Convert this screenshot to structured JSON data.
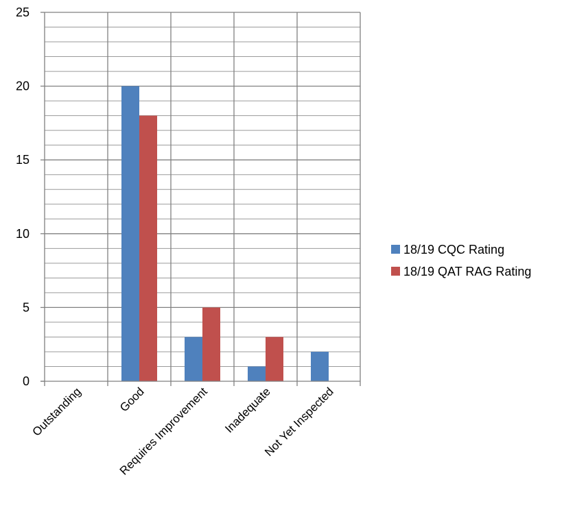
{
  "chart_data": {
    "type": "bar",
    "categories": [
      "Outstanding",
      "Good",
      "Requires Improvement",
      "Inadequate",
      "Not Yet Inspected"
    ],
    "series": [
      {
        "name": "18/19 CQC Rating",
        "values": [
          0,
          20,
          3,
          1,
          2
        ],
        "color": "#4F81BD"
      },
      {
        "name": "18/19 QAT RAG Rating",
        "values": [
          0,
          18,
          5,
          3,
          0
        ],
        "color": "#C0504D"
      }
    ],
    "y_ticks": [
      "0",
      "5",
      "10",
      "15",
      "20",
      "25"
    ],
    "ylim": [
      0,
      25
    ],
    "minor_gridline_step": 1,
    "grid": true,
    "legend_position": "right",
    "title": "",
    "xlabel": "",
    "ylabel": ""
  }
}
